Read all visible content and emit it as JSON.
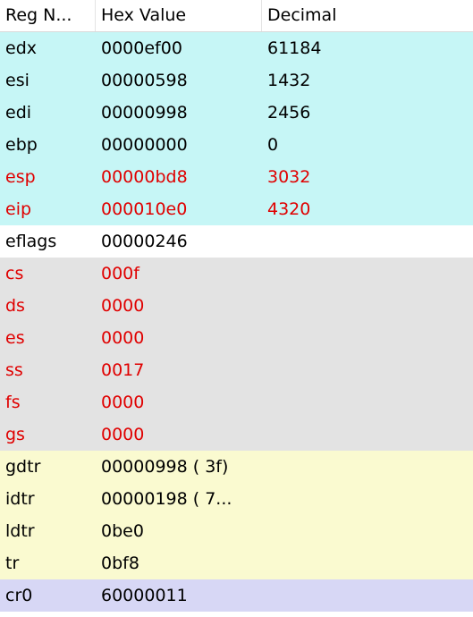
{
  "columns": [
    "Reg N...",
    "Hex Value",
    "Decimal"
  ],
  "colors": {
    "general": "#c6f6f6",
    "flags": "#ffffff",
    "segment": "#e3e3e3",
    "descriptor": "#fafad0",
    "control": "#d7d7f5",
    "changed_text": "#e00000",
    "normal_text": "#000000"
  },
  "rows": [
    {
      "name": "edx",
      "hex": "0000ef00",
      "dec": "61184",
      "group": "g-gen",
      "changed": false
    },
    {
      "name": "esi",
      "hex": "00000598",
      "dec": "1432",
      "group": "g-gen",
      "changed": false
    },
    {
      "name": "edi",
      "hex": "00000998",
      "dec": "2456",
      "group": "g-gen",
      "changed": false
    },
    {
      "name": "ebp",
      "hex": "00000000",
      "dec": "0",
      "group": "g-gen",
      "changed": false
    },
    {
      "name": "esp",
      "hex": "00000bd8",
      "dec": "3032",
      "group": "g-gen",
      "changed": true
    },
    {
      "name": "eip",
      "hex": "000010e0",
      "dec": "4320",
      "group": "g-gen",
      "changed": true
    },
    {
      "name": "eflags",
      "hex": "00000246",
      "dec": "",
      "group": "g-flags",
      "changed": false
    },
    {
      "name": "cs",
      "hex": "000f",
      "dec": "",
      "group": "g-seg",
      "changed": true
    },
    {
      "name": "ds",
      "hex": "0000",
      "dec": "",
      "group": "g-seg",
      "changed": true
    },
    {
      "name": "es",
      "hex": "0000",
      "dec": "",
      "group": "g-seg",
      "changed": true
    },
    {
      "name": "ss",
      "hex": "0017",
      "dec": "",
      "group": "g-seg",
      "changed": true
    },
    {
      "name": "fs",
      "hex": "0000",
      "dec": "",
      "group": "g-seg",
      "changed": true
    },
    {
      "name": "gs",
      "hex": "0000",
      "dec": "",
      "group": "g-seg",
      "changed": true
    },
    {
      "name": "gdtr",
      "hex": "00000998 ( 3f)",
      "dec": "",
      "group": "g-desc",
      "changed": false
    },
    {
      "name": "idtr",
      "hex": "00000198 ( 7...",
      "dec": "",
      "group": "g-desc",
      "changed": false
    },
    {
      "name": "ldtr",
      "hex": "0be0",
      "dec": "",
      "group": "g-desc",
      "changed": false
    },
    {
      "name": "tr",
      "hex": "0bf8",
      "dec": "",
      "group": "g-desc",
      "changed": false
    },
    {
      "name": "cr0",
      "hex": "60000011",
      "dec": "",
      "group": "g-cr",
      "changed": false
    }
  ]
}
